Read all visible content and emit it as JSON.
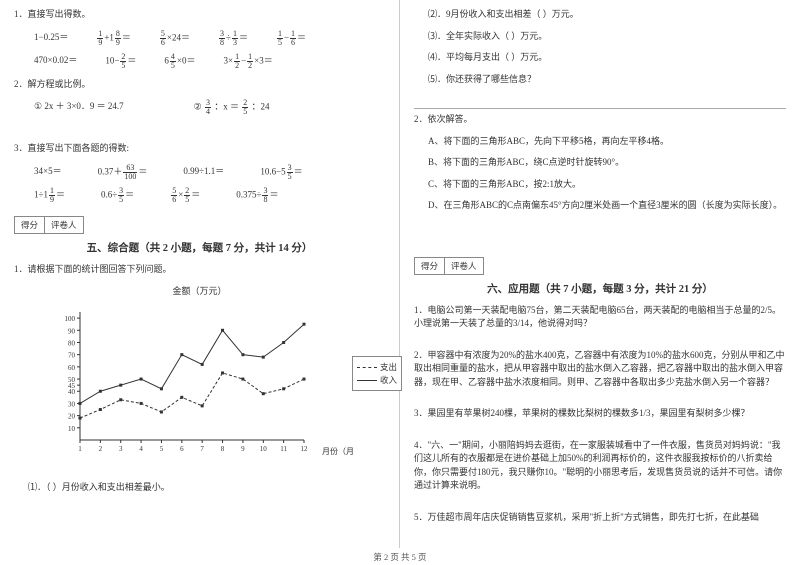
{
  "footer": "第 2 页 共 5 页",
  "left": {
    "q1": {
      "title": "1．直接写出得数。",
      "row1": [
        "1−0.25＝",
        "<f>1|9</f>+1<f>8|9</f>＝",
        "<f>5|6</f>×24＝",
        "<f>3|8</f>÷<f>1|3</f>＝",
        "<f>1|5</f>−<f>1|6</f>＝"
      ],
      "row2": [
        "470×0.02＝",
        "10−<f>2|5</f>＝",
        "6<f>4|5</f>×0＝",
        "3×<f>1|2</f>−<f>1|2</f>×3＝"
      ]
    },
    "q2": {
      "title": "2．解方程或比例。",
      "items": [
        "① 2x ＋ 3×0．9 ＝ 24.7",
        "② <f>3|4</f> ：x ＝ <f>2|5</f> ：24"
      ]
    },
    "q3": {
      "title": "3．直接写出下面各题的得数:",
      "row1": [
        "34×5＝",
        "0.37＋<f>63|100</f>＝",
        "0.99÷1.1＝",
        "10.6−5<f>3|5</f>＝"
      ],
      "row2": [
        "1÷1<f>1|9</f>＝",
        "0.6÷<f>3|5</f>＝",
        "<f>5|6</f>×<f>2|5</f>＝",
        "0.375÷<f>3|8</f>＝"
      ]
    },
    "score": [
      "得分",
      "评卷人"
    ],
    "section5": "五、综合题（共 2 小题，每题 7 分，共计 14 分）",
    "q_chart": "1．请根据下面的统计图回答下列问题。",
    "chart": {
      "title": "金额（万元）",
      "xlabel": "月份（月）",
      "xticks": [
        "1",
        "2",
        "3",
        "4",
        "5",
        "6",
        "7",
        "8",
        "9",
        "10",
        "11",
        "12"
      ],
      "yticks": [
        "10",
        "20",
        "30",
        "40",
        "45",
        "50",
        "60",
        "70",
        "80",
        "90",
        "100"
      ],
      "yvals": [
        10,
        20,
        30,
        40,
        45,
        50,
        60,
        70,
        80,
        90,
        100
      ],
      "ylim": [
        0,
        105
      ],
      "legend": [
        "支出",
        "收入"
      ],
      "series_expense": [
        18,
        25,
        33,
        30,
        23,
        35,
        28,
        55,
        50,
        38,
        42,
        50
      ],
      "series_income": [
        30,
        40,
        45,
        50,
        42,
        70,
        62,
        90,
        70,
        68,
        80,
        95
      ],
      "colors": {
        "line": "#333333",
        "grid": "#888888"
      }
    },
    "sub1": "⑴．（ ）月份收入和支出相差最小。"
  },
  "right": {
    "subs": [
      "⑵．9月份收入和支出相差（ ）万元。",
      "⑶．全年实际收入（ ）万元。",
      "⑷．平均每月支出（ ）万元。",
      "⑸．你还获得了哪些信息？"
    ],
    "q2": {
      "title": "2．依次解答。",
      "items": [
        "A、将下面的三角形ABC，先向下平移5格，再向左平移4格。",
        "B、将下面的三角形ABC，绕C点逆时针旋转90°。",
        "C、将下面的三角形ABC，按2:1放大。",
        "D、在三角形ABC的C点南偏东45°方向2厘米处画一个直径3厘米的圆（长度为实际长度）。"
      ]
    },
    "score": [
      "得分",
      "评卷人"
    ],
    "section6": "六、应用题（共 7 小题，每题 3 分，共计 21 分）",
    "apps": [
      "1．电脑公司第一天装配电脑75台，第二天装配电脑65台，两天装配的电脑相当于总量的2/5。小理说第一天装了总量的3/14，他说得对吗？",
      "2．甲容器中有浓度为20%的盐水400克，乙容器中有浓度为10%的盐水600克，分别从甲和乙中取出相同重量的盐水，把从甲容器中取出的盐水倒入乙容器，把乙容器中取出的盐水倒入甲容器，现在甲、乙容器中盐水浓度相同。则甲、乙容器中各取出多少克盐水倒入另一个容器？",
      "3．果园里有苹果树240棵，苹果树的棵数比梨树的棵数多1/3，果园里有梨树多少棵？",
      "4．\"六、一\"期间，小丽陪妈妈去逛街，在一家服装城看中了一件衣服，售货员对妈妈说：\"我们这儿所有的衣服都是在进价基础上加50%的利润再标价的，这件衣服我按标价的八折卖给你，你只需要付180元，我只赚你10。\"聪明的小丽思考后，发现售货员说的话并不可信。请你通过计算来说明。",
      "5．万佳超市周年店庆促销销售豆浆机，采用\"折上折\"方式销售，即先打七折，在此基础"
    ]
  }
}
